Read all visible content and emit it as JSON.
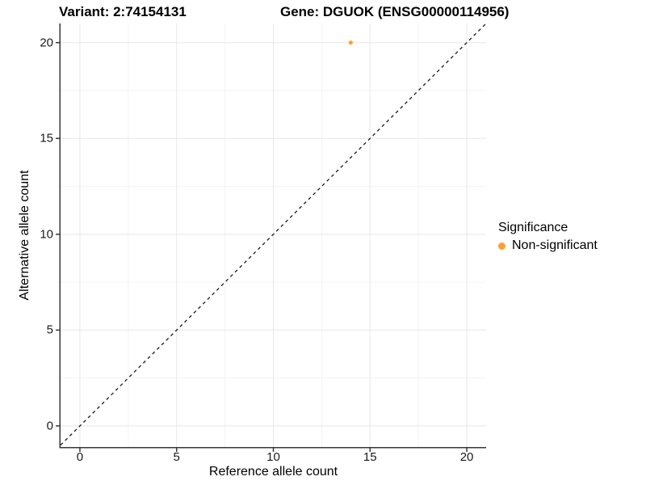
{
  "chart_data": {
    "type": "scatter",
    "title_left": "Variant: 2:74154131",
    "title_right": "Gene: DGUOK (ENSG00000114956)",
    "xlabel": "Reference allele count",
    "ylabel": "Alternative allele count",
    "x_ticks": [
      0,
      5,
      10,
      15,
      20
    ],
    "y_ticks": [
      0,
      5,
      10,
      15,
      20
    ],
    "x_minor_ticks": [
      2.5,
      7.5,
      12.5,
      17.5
    ],
    "y_minor_ticks": [
      2.5,
      7.5,
      12.5,
      17.5
    ],
    "xlim": [
      -1,
      21
    ],
    "ylim": [
      -1.1,
      21
    ],
    "grid": true,
    "points": [
      {
        "x": 14,
        "y": 20,
        "series": "Non-significant"
      }
    ],
    "identity_line": {
      "slope": 1,
      "intercept": 0,
      "style": "dashed"
    },
    "legend": {
      "title": "Significance",
      "position": "right",
      "items": [
        {
          "label": "Non-significant",
          "color": "#FCA12E"
        }
      ]
    },
    "colors": {
      "point": "#FCA12E",
      "grid_major": "#e8e8e8",
      "grid_minor": "#f3f3f3",
      "axis_line": "#383838",
      "dashed_line": "#1a1a1a",
      "tick_text": "#1a1a1a"
    }
  }
}
